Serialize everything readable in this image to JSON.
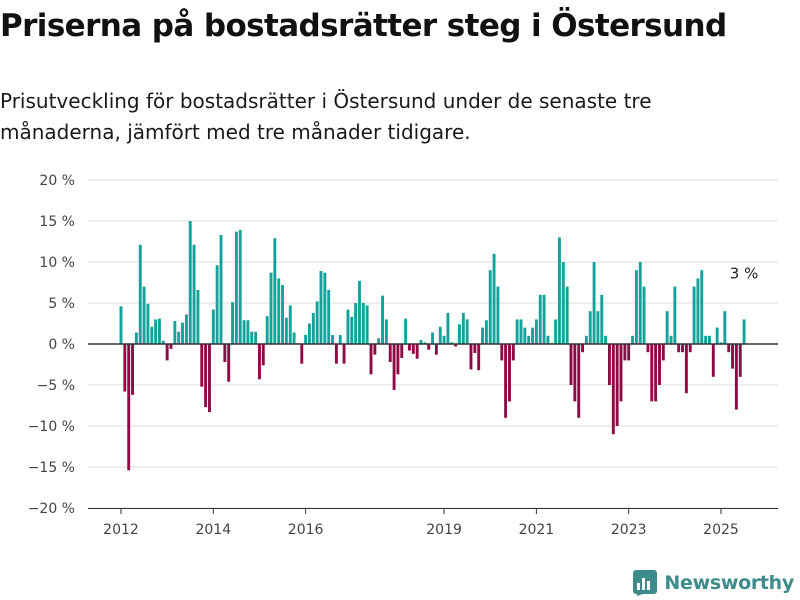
{
  "title": "Priserna på bostadsrätter steg i Östersund",
  "subtitle": "Prisutveckling för bostadsrätter i Östersund under de senaste tre månaderna, jämfört med tre månader tidigare.",
  "brand": {
    "name": "Newsworthy",
    "color": "#3d8b8b",
    "icon": "bar-chart-logo-icon"
  },
  "colors": {
    "positive": "#13a39a",
    "negative": "#8f0a45",
    "grid": "#dddddd",
    "zero_line": "#333333",
    "axis_text": "#444444"
  },
  "chart_data": {
    "type": "bar",
    "ylim": [
      -20,
      20
    ],
    "y_ticks": [
      20,
      15,
      10,
      5,
      0,
      -5,
      -10,
      -15,
      -20
    ],
    "y_tick_labels": [
      "20 %",
      "15 %",
      "10 %",
      "5 %",
      "0 %",
      "−5 %",
      "−10 %",
      "−15 %",
      "−20 %"
    ],
    "x_ticks": [
      2012,
      2014,
      2016,
      2019,
      2021,
      2023,
      2025
    ],
    "x_tick_labels": [
      "2012",
      "2014",
      "2016",
      "2019",
      "2021",
      "2023",
      "2025"
    ],
    "x_range": [
      2011.3,
      2026.2
    ],
    "annotation": {
      "text": "3 %",
      "x": 2025.5,
      "y": 3
    },
    "grid": true,
    "x": [
      2012.0,
      2012.083,
      2012.167,
      2012.25,
      2012.333,
      2012.417,
      2012.5,
      2012.583,
      2012.667,
      2012.75,
      2012.833,
      2012.917,
      2013.0,
      2013.083,
      2013.167,
      2013.25,
      2013.333,
      2013.417,
      2013.5,
      2013.583,
      2013.667,
      2013.75,
      2013.833,
      2013.917,
      2014.0,
      2014.083,
      2014.167,
      2014.25,
      2014.333,
      2014.417,
      2014.5,
      2014.583,
      2014.667,
      2014.75,
      2014.833,
      2014.917,
      2015.0,
      2015.083,
      2015.167,
      2015.25,
      2015.333,
      2015.417,
      2015.5,
      2015.583,
      2015.667,
      2015.75,
      2015.833,
      2015.917,
      2016.0,
      2016.083,
      2016.167,
      2016.25,
      2016.333,
      2016.417,
      2016.5,
      2016.583,
      2016.667,
      2016.75,
      2016.833,
      2016.917,
      2017.0,
      2017.083,
      2017.167,
      2017.25,
      2017.333,
      2017.417,
      2017.5,
      2017.583,
      2017.667,
      2017.75,
      2017.833,
      2017.917,
      2018.0,
      2018.083,
      2018.167,
      2018.25,
      2018.333,
      2018.417,
      2018.5,
      2018.583,
      2018.667,
      2018.75,
      2018.833,
      2018.917,
      2019.0,
      2019.083,
      2019.167,
      2019.25,
      2019.333,
      2019.417,
      2019.5,
      2019.583,
      2019.667,
      2019.75,
      2019.833,
      2019.917,
      2020.0,
      2020.083,
      2020.167,
      2020.25,
      2020.333,
      2020.417,
      2020.5,
      2020.583,
      2020.667,
      2020.75,
      2020.833,
      2020.917,
      2021.0,
      2021.083,
      2021.167,
      2021.25,
      2021.333,
      2021.417,
      2021.5,
      2021.583,
      2021.667,
      2021.75,
      2021.833,
      2021.917,
      2022.0,
      2022.083,
      2022.167,
      2022.25,
      2022.333,
      2022.417,
      2022.5,
      2022.583,
      2022.667,
      2022.75,
      2022.833,
      2022.917,
      2023.0,
      2023.083,
      2023.167,
      2023.25,
      2023.333,
      2023.417,
      2023.5,
      2023.583,
      2023.667,
      2023.75,
      2023.833,
      2023.917,
      2024.0,
      2024.083,
      2024.167,
      2024.25,
      2024.333,
      2024.417,
      2024.5,
      2024.583,
      2024.667,
      2024.75,
      2024.833,
      2024.917,
      2025.0,
      2025.083,
      2025.167,
      2025.25,
      2025.333,
      2025.417,
      2025.5
    ],
    "values": [
      4.6,
      -5.8,
      -15.4,
      -6.2,
      1.4,
      12.1,
      7.0,
      4.9,
      2.1,
      3.0,
      3.1,
      0.4,
      -2.0,
      -0.6,
      2.8,
      1.5,
      2.6,
      3.6,
      15.0,
      12.1,
      6.6,
      -5.2,
      -7.7,
      -8.3,
      4.2,
      9.6,
      13.3,
      -2.2,
      -4.6,
      5.1,
      13.7,
      13.9,
      2.9,
      2.9,
      1.5,
      1.5,
      -4.3,
      -2.6,
      3.4,
      8.7,
      12.9,
      8.0,
      7.2,
      3.2,
      4.7,
      1.4,
      0.1,
      -2.4,
      1.1,
      2.5,
      3.8,
      5.2,
      8.9,
      8.7,
      6.6,
      1.1,
      -2.4,
      1.1,
      -2.4,
      4.2,
      3.3,
      5.0,
      7.7,
      5.0,
      4.7,
      -3.7,
      -1.3,
      0.7,
      5.9,
      3.0,
      -2.2,
      -5.6,
      -3.7,
      -1.7,
      3.1,
      -0.8,
      -1.2,
      -1.8,
      0.5,
      0.2,
      -0.7,
      1.4,
      -1.3,
      2.1,
      1.0,
      3.8,
      0.2,
      -0.3,
      2.4,
      3.8,
      3.0,
      -3.1,
      -1.1,
      -3.2,
      2.0,
      2.9,
      9.0,
      11.0,
      7.0,
      -2.0,
      -9.0,
      -7.0,
      -2.0,
      3.0,
      3.0,
      2.0,
      1.0,
      2.0,
      3.0,
      6.0,
      6.0,
      1.0,
      0.1,
      3.0,
      13.0,
      10.0,
      7.0,
      -5.0,
      -7.0,
      -9.0,
      -1.0,
      1.0,
      4.0,
      10.0,
      4.0,
      6.0,
      1.0,
      -5.0,
      -11.0,
      -10.0,
      -7.0,
      -2.0,
      -2.0,
      1.0,
      9.0,
      10.0,
      7.0,
      -1.0,
      -7.0,
      -7.0,
      -5.0,
      -2.0,
      4.0,
      1.0,
      7.0,
      -1.0,
      -1.0,
      -6.0,
      -1.0,
      7.0,
      8.0,
      9.0,
      1.0,
      1.0,
      -4.0,
      2.0,
      0.2,
      4.0,
      -1.0,
      -3.0,
      -8.0,
      -4.0,
      3.0
    ]
  }
}
